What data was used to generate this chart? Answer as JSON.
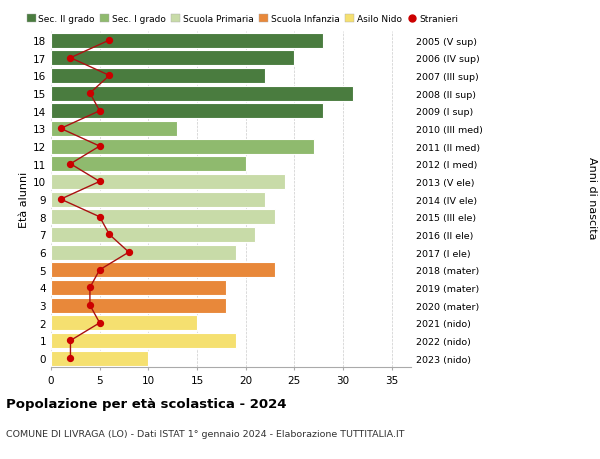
{
  "ages": [
    0,
    1,
    2,
    3,
    4,
    5,
    6,
    7,
    8,
    9,
    10,
    11,
    12,
    13,
    14,
    15,
    16,
    17,
    18
  ],
  "right_labels": [
    "2023 (nido)",
    "2022 (nido)",
    "2021 (nido)",
    "2020 (mater)",
    "2019 (mater)",
    "2018 (mater)",
    "2017 (I ele)",
    "2016 (II ele)",
    "2015 (III ele)",
    "2014 (IV ele)",
    "2013 (V ele)",
    "2012 (I med)",
    "2011 (II med)",
    "2010 (III med)",
    "2009 (I sup)",
    "2008 (II sup)",
    "2007 (III sup)",
    "2006 (IV sup)",
    "2005 (V sup)"
  ],
  "bar_values": [
    10,
    19,
    15,
    18,
    18,
    23,
    19,
    21,
    23,
    22,
    24,
    20,
    27,
    13,
    28,
    31,
    22,
    25,
    28
  ],
  "stranieri_values": [
    2,
    2,
    5,
    4,
    4,
    5,
    8,
    6,
    5,
    1,
    5,
    2,
    5,
    1,
    5,
    4,
    6,
    2,
    6
  ],
  "bar_colors": [
    "#f5e070",
    "#f5e070",
    "#f5e070",
    "#e8883a",
    "#e8883a",
    "#e8883a",
    "#c8dba8",
    "#c8dba8",
    "#c8dba8",
    "#c8dba8",
    "#c8dba8",
    "#8fba6e",
    "#8fba6e",
    "#8fba6e",
    "#4a7c3f",
    "#4a7c3f",
    "#4a7c3f",
    "#4a7c3f",
    "#4a7c3f"
  ],
  "legend_labels": [
    "Sec. II grado",
    "Sec. I grado",
    "Scuola Primaria",
    "Scuola Infanzia",
    "Asilo Nido",
    "Stranieri"
  ],
  "legend_colors": [
    "#4a7c3f",
    "#8fba6e",
    "#c8dba8",
    "#e8883a",
    "#f5e070",
    "#cc0000"
  ],
  "ylabel_left": "Età alunni",
  "ylabel_right": "Anni di nascita",
  "title": "Popolazione per età scolastica - 2024",
  "subtitle": "COMUNE DI LIVRAGA (LO) - Dati ISTAT 1° gennaio 2024 - Elaborazione TUTTITALIA.IT",
  "xlim": [
    0,
    37
  ],
  "stranieri_line_color": "#aa1111",
  "stranieri_dot_color": "#cc0000",
  "bg_color": "#ffffff",
  "grid_color": "#cccccc"
}
